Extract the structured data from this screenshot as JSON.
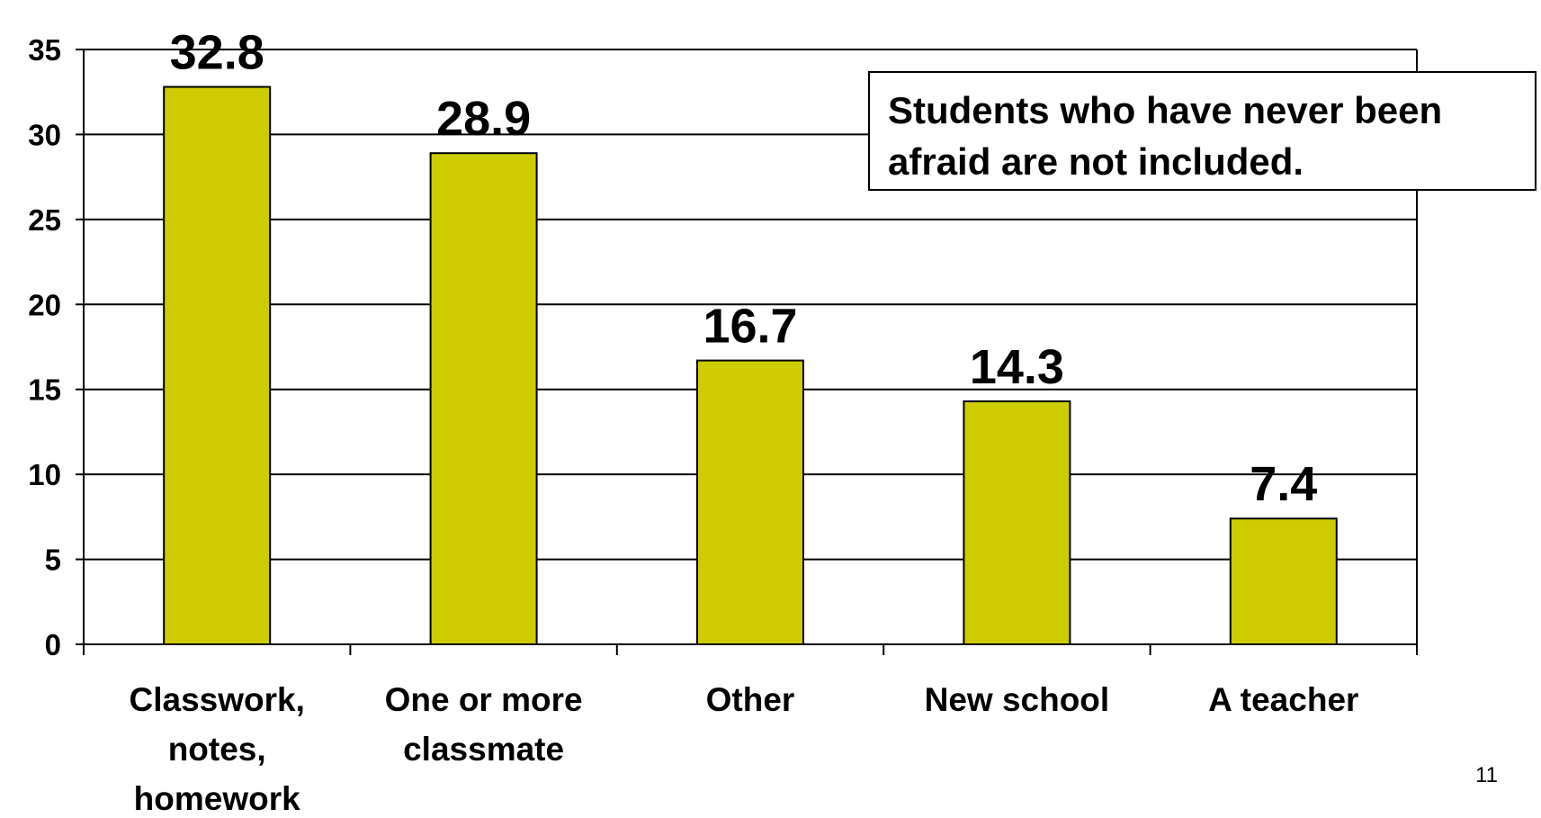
{
  "chart_data": {
    "type": "bar",
    "categories": [
      [
        "Classwork,",
        "notes,",
        "homework"
      ],
      [
        "One or more",
        "classmate"
      ],
      [
        "Other"
      ],
      [
        "New school"
      ],
      [
        "A teacher"
      ]
    ],
    "values": [
      32.8,
      28.9,
      16.7,
      14.3,
      7.4
    ],
    "data_labels": [
      "32.8",
      "28.9",
      "16.7",
      "14.3",
      "7.4"
    ],
    "ylim": [
      0,
      35
    ],
    "yticks": [
      0,
      5,
      10,
      15,
      20,
      25,
      30,
      35
    ],
    "grid": true,
    "bar_color": "#cccc00",
    "title": "",
    "xlabel": "",
    "ylabel": ""
  },
  "note": {
    "line1": "Students who have never been",
    "line2": "afraid are not included."
  },
  "page_number": "11"
}
